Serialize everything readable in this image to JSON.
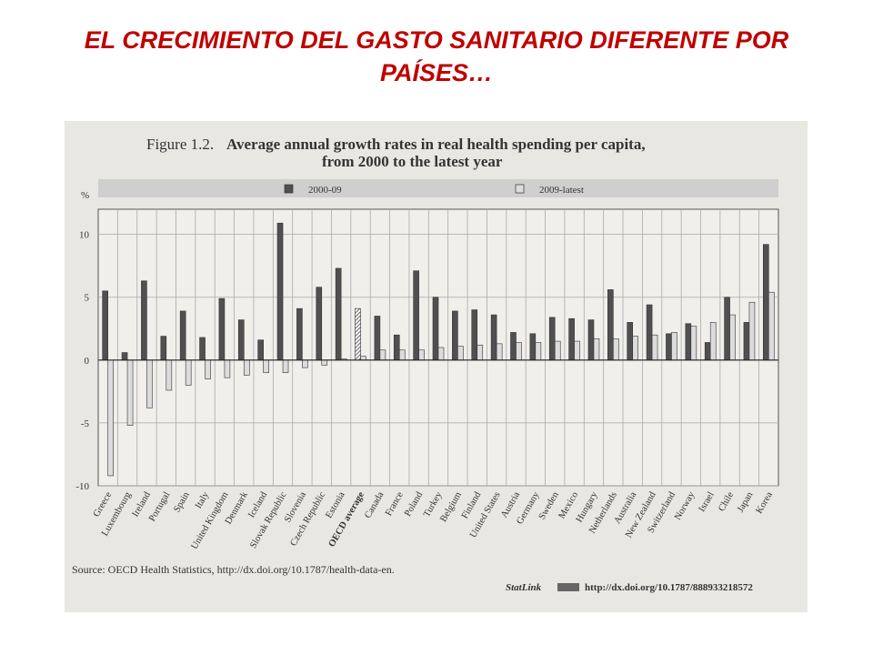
{
  "slide": {
    "title": "EL CRECIMIENTO DEL GASTO SANITARIO DIFERENTE POR PAÍSES…"
  },
  "figure": {
    "number": "Figure 1.2.",
    "title_line1": "Average annual growth rates in real health spending per capita,",
    "title_line2": "from 2000 to the latest year",
    "source": "Source: OECD Health Statistics, http://dx.doi.org/10.1787/health-data-en.",
    "statlink_label": "StatLink",
    "statlink_url": "http://dx.doi.org/10.1787/888933218572"
  },
  "chart_data": {
    "type": "bar",
    "ylabel": "%",
    "ylim": [
      -10,
      12
    ],
    "yticks": [
      10,
      5,
      0,
      -5,
      -10
    ],
    "grid": true,
    "legend_position": "top",
    "categories": [
      "Greece",
      "Luxembourg",
      "Ireland",
      "Portugal",
      "Spain",
      "Italy",
      "United Kingdom",
      "Denmark",
      "Iceland",
      "Slovak Republic",
      "Slovenia",
      "Czech Republic",
      "Estonia",
      "OECD average",
      "Canada",
      "France",
      "Poland",
      "Turkey",
      "Belgium",
      "Finland",
      "United States",
      "Austria",
      "Germany",
      "Sweden",
      "Mexico",
      "Hungary",
      "Netherlands",
      "Australia",
      "New Zealand",
      "Switzerland",
      "Norway",
      "Israel",
      "Chile",
      "Japan",
      "Korea"
    ],
    "series": [
      {
        "name": "2000-09",
        "color": "#505050",
        "values": [
          5.5,
          0.6,
          6.3,
          1.9,
          3.9,
          1.8,
          4.9,
          3.2,
          1.6,
          10.9,
          4.1,
          5.8,
          7.3,
          4.1,
          3.5,
          2.0,
          7.1,
          5.0,
          3.9,
          4.0,
          3.6,
          2.2,
          2.1,
          3.4,
          3.3,
          3.2,
          5.6,
          3.0,
          4.4,
          2.1,
          2.9,
          1.4,
          5.0,
          3.0,
          9.2
        ]
      },
      {
        "name": "2009-latest",
        "color": "#dcdcdc",
        "values": [
          -9.2,
          -5.2,
          -3.8,
          -2.4,
          -2.0,
          -1.5,
          -1.4,
          -1.2,
          -1.0,
          -1.0,
          -0.6,
          -0.4,
          0.1,
          0.3,
          0.8,
          0.8,
          0.8,
          1.0,
          1.1,
          1.2,
          1.3,
          1.4,
          1.4,
          1.5,
          1.5,
          1.7,
          1.7,
          1.9,
          2.0,
          2.2,
          2.7,
          3.0,
          3.6,
          4.6,
          5.4
        ]
      }
    ],
    "highlight_category": "OECD average"
  }
}
